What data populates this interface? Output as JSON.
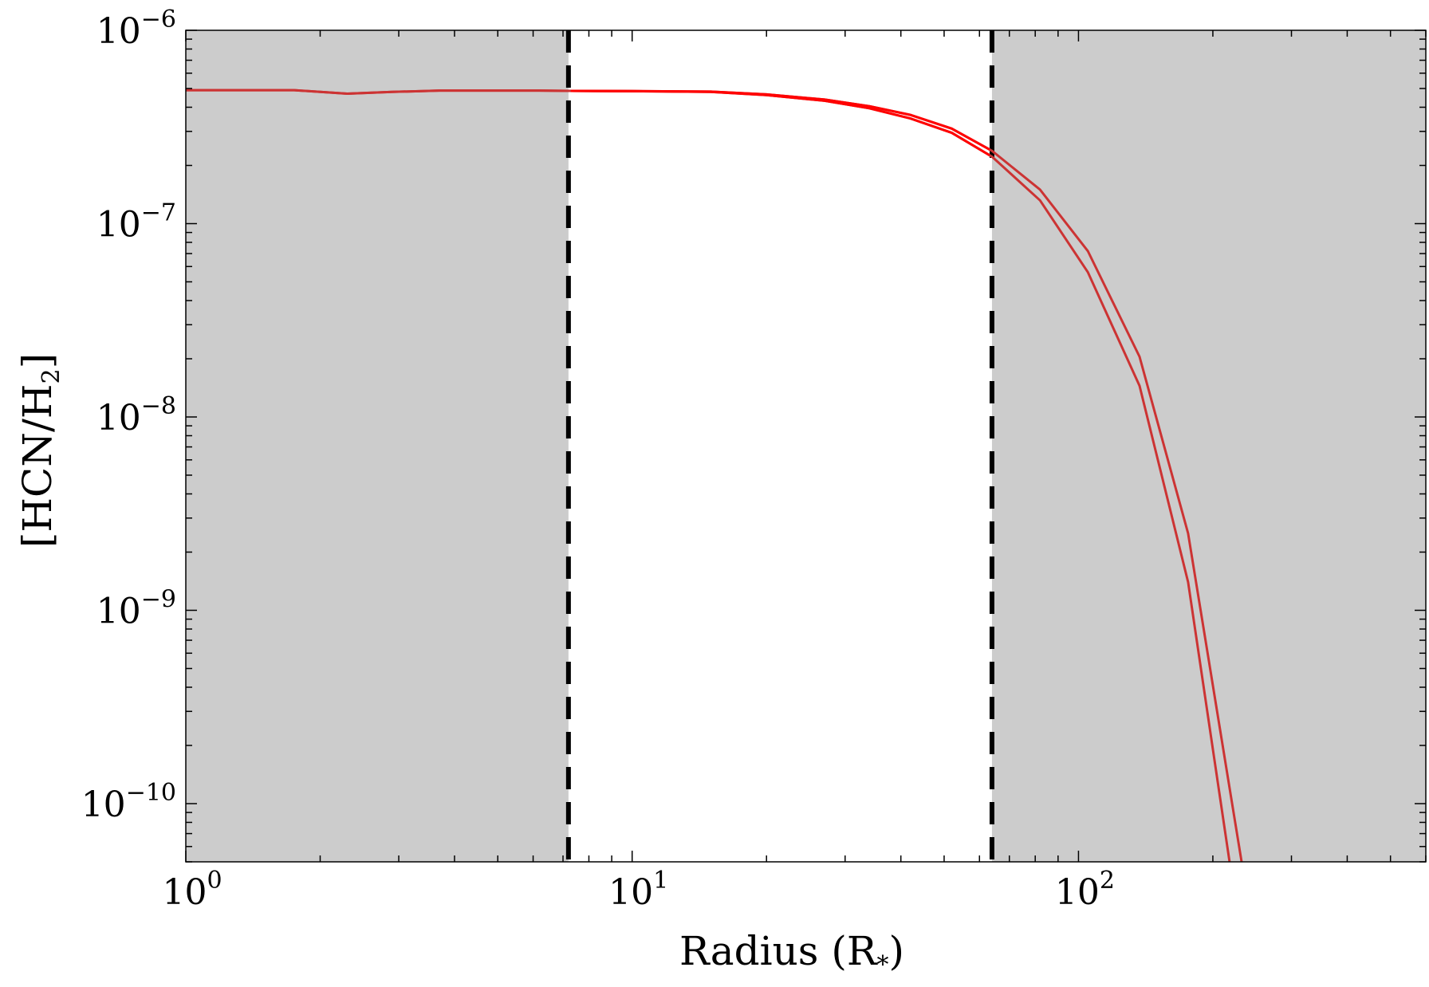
{
  "chart_data": {
    "type": "line",
    "title": "",
    "xlabel": {
      "main": "Radius (R",
      "sub": "*",
      "tail": ")"
    },
    "ylabel": {
      "main": "[HCN/H",
      "sub": "2",
      "tail": "]"
    },
    "xscale": "log",
    "yscale": "log",
    "xlim": [
      1,
      600
    ],
    "ylim": [
      5e-11,
      1e-06
    ],
    "grid": false,
    "legend": "none",
    "x_ticks": [
      {
        "value": 1,
        "base": "10",
        "exp": "0"
      },
      {
        "value": 10,
        "base": "10",
        "exp": "1"
      },
      {
        "value": 100,
        "base": "10",
        "exp": "2"
      }
    ],
    "y_ticks": [
      {
        "value": 1e-06,
        "base": "10",
        "exp": "−6"
      },
      {
        "value": 1e-07,
        "base": "10",
        "exp": "−7"
      },
      {
        "value": 1e-08,
        "base": "10",
        "exp": "−8"
      },
      {
        "value": 1e-09,
        "base": "10",
        "exp": "−9"
      },
      {
        "value": 1e-10,
        "base": "10",
        "exp": "−10"
      }
    ],
    "shaded_regions": [
      {
        "x": [
          1,
          7.2
        ],
        "color": "#cccccc"
      },
      {
        "x": [
          64,
          600
        ],
        "color": "#cccccc"
      }
    ],
    "vlines": [
      {
        "x": 7.2,
        "style": "dashed",
        "color": "#000000"
      },
      {
        "x": 64,
        "style": "dashed",
        "color": "#000000"
      }
    ],
    "series": [
      {
        "color": "#cc3333",
        "highlight_color": "#ff0000",
        "x": [
          1,
          1.75,
          2.3,
          2.9,
          3.7,
          4.8,
          6.2,
          7.2,
          10,
          15,
          20,
          27,
          34,
          42,
          52,
          64,
          82,
          105,
          137,
          176,
          218
        ],
        "y": [
          4.9e-07,
          4.9e-07,
          4.7e-07,
          4.8e-07,
          4.88e-07,
          4.88e-07,
          4.88e-07,
          4.86e-07,
          4.84e-07,
          4.8e-07,
          4.62e-07,
          4.32e-07,
          3.95e-07,
          3.5e-07,
          2.95e-07,
          2.22e-07,
          1.32e-07,
          5.6e-08,
          1.45e-08,
          1.4e-09,
          5e-11
        ]
      },
      {
        "color": "#cc3333",
        "highlight_color": "#ff0000",
        "x": [
          1,
          1.75,
          2.3,
          2.9,
          3.7,
          4.8,
          6.2,
          7.2,
          10,
          15,
          20,
          27,
          34,
          42,
          52,
          64,
          82,
          105,
          137,
          176,
          232
        ],
        "y": [
          4.9e-07,
          4.9e-07,
          4.7e-07,
          4.8e-07,
          4.88e-07,
          4.88e-07,
          4.88e-07,
          4.86e-07,
          4.85e-07,
          4.82e-07,
          4.66e-07,
          4.38e-07,
          4.05e-07,
          3.65e-07,
          3.1e-07,
          2.38e-07,
          1.5e-07,
          7.2e-08,
          2.05e-08,
          2.5e-09,
          5e-11
        ]
      }
    ]
  }
}
